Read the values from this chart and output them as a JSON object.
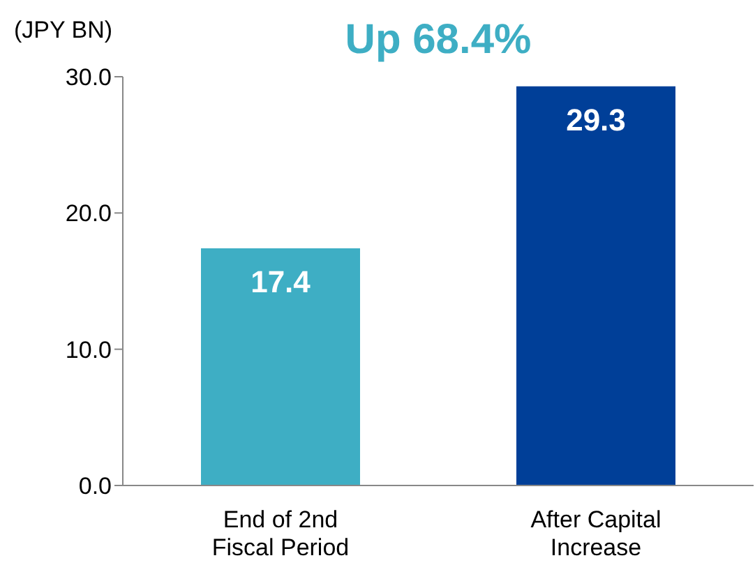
{
  "chart_data": {
    "type": "bar",
    "title": "Up 68.4%",
    "ylabel": "(JPY BN)",
    "categories": [
      "End of 2nd\nFiscal Period",
      "After Capital\nIncrease"
    ],
    "values": [
      17.4,
      29.3
    ],
    "colors": [
      "#3eaec4",
      "#003f98"
    ],
    "ylim": [
      0,
      30
    ],
    "yticks": [
      {
        "value": 0,
        "label": "0.0"
      },
      {
        "value": 10,
        "label": "10.0"
      },
      {
        "value": 20,
        "label": "20.0"
      },
      {
        "value": 30,
        "label": "30.0"
      }
    ],
    "grid": false,
    "data_labels": true
  }
}
